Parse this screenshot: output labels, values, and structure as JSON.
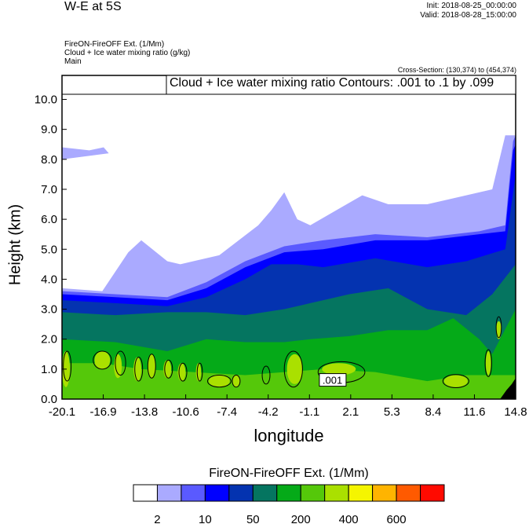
{
  "header": {
    "title": "W-E at 5S",
    "init": "Init: 2018-08-25_00:00:00",
    "valid": "Valid: 2018-08-28_15:00:00",
    "field1": "FireON-FireOFF Ext.   (1/Mm)",
    "field2": "Cloud + Ice water mixing ratio   (g/kg)",
    "field3": "Main",
    "cross_section": "Cross-Section: (130,374) to (454,374)"
  },
  "chart_data": {
    "type": "contour",
    "contour_label": "Cloud + Ice water mixing ratio Contours: .001 to .1 by .099",
    "xlabel": "longitude",
    "ylabel": "Height (km)",
    "xlim": [
      -20.1,
      14.8
    ],
    "ylim": [
      0,
      10.8
    ],
    "xticks": [
      "-20.1",
      "-16.9",
      "-13.8",
      "-10.6",
      "-7.4",
      "-4.2",
      "-1.1",
      "2.1",
      "5.3",
      "8.4",
      "11.6",
      "14.8"
    ],
    "yticks": [
      "0.0",
      "1.0",
      "2.0",
      "3.0",
      "4.0",
      "5.0",
      "6.0",
      "7.0",
      "8.0",
      "9.0",
      "10.0"
    ],
    "colorbar": {
      "title": "FireON-FireOFF Ext.  (1/Mm)",
      "labels": [
        "2",
        "10",
        "50",
        "200",
        "400",
        "600"
      ],
      "colors": [
        "#ffffff",
        "#aaaaff",
        "#5a5aff",
        "#0000ff",
        "#0433b0",
        "#057560",
        "#05aa18",
        "#55c80a",
        "#aae000",
        "#f5f500",
        "#ffb400",
        "#ff5a00",
        "#ff0a00"
      ]
    },
    "bands": [
      {
        "color": "#aaaaff",
        "top": [
          [
            -20.1,
            3.7
          ],
          [
            -17,
            3.6
          ],
          [
            -15,
            4.9
          ],
          [
            -14,
            5.3
          ],
          [
            -12,
            4.6
          ],
          [
            -11,
            4.5
          ],
          [
            -8,
            4.8
          ],
          [
            -5,
            5.8
          ],
          [
            -4,
            6.3
          ],
          [
            -3,
            6.9
          ],
          [
            -2,
            6.0
          ],
          [
            -1,
            5.8
          ],
          [
            1,
            6.3
          ],
          [
            3,
            6.8
          ],
          [
            5,
            6.5
          ],
          [
            8,
            6.5
          ],
          [
            11,
            6.8
          ],
          [
            13,
            7.0
          ],
          [
            14,
            8.8
          ],
          [
            14.8,
            8.8
          ]
        ]
      },
      {
        "color": "#aaaaff",
        "top": [
          [
            -20.1,
            8.4
          ],
          [
            -18,
            8.3
          ],
          [
            -16.9,
            8.4
          ],
          [
            -16.5,
            8.2
          ],
          [
            -20.1,
            8.0
          ]
        ]
      },
      {
        "color": "#5a5aff",
        "top": [
          [
            -20.1,
            3.6
          ],
          [
            -16,
            3.5
          ],
          [
            -12,
            3.4
          ],
          [
            -9,
            3.9
          ],
          [
            -6,
            4.6
          ],
          [
            -3,
            5.1
          ],
          [
            0,
            5.3
          ],
          [
            4,
            5.5
          ],
          [
            8,
            5.4
          ],
          [
            12,
            5.6
          ],
          [
            14,
            5.8
          ],
          [
            14.6,
            8.6
          ],
          [
            14.8,
            8.8
          ]
        ]
      },
      {
        "color": "#0000ff",
        "top": [
          [
            -20.1,
            3.5
          ],
          [
            -16,
            3.4
          ],
          [
            -12,
            3.3
          ],
          [
            -9,
            3.7
          ],
          [
            -6,
            4.4
          ],
          [
            -3,
            4.9
          ],
          [
            0,
            5.0
          ],
          [
            4,
            5.3
          ],
          [
            8,
            5.3
          ],
          [
            12,
            5.5
          ],
          [
            14,
            5.6
          ],
          [
            14.6,
            8.3
          ],
          [
            14.8,
            8.5
          ]
        ]
      },
      {
        "color": "#0433b0",
        "top": [
          [
            -20.1,
            3.3
          ],
          [
            -16,
            3.2
          ],
          [
            -12,
            3.1
          ],
          [
            -9,
            3.4
          ],
          [
            -6,
            4.0
          ],
          [
            -4,
            4.5
          ],
          [
            -2,
            4.5
          ],
          [
            0,
            4.4
          ],
          [
            4,
            4.7
          ],
          [
            8,
            4.4
          ],
          [
            11,
            4.6
          ],
          [
            14,
            5.0
          ],
          [
            14.8,
            7.5
          ]
        ]
      },
      {
        "color": "#057560",
        "top": [
          [
            -20.1,
            2.9
          ],
          [
            -16,
            2.8
          ],
          [
            -12,
            2.9
          ],
          [
            -9,
            2.9
          ],
          [
            -6,
            2.8
          ],
          [
            -3,
            3.0
          ],
          [
            -1,
            3.2
          ],
          [
            2,
            3.5
          ],
          [
            5,
            3.7
          ],
          [
            8,
            3.0
          ],
          [
            11,
            2.8
          ],
          [
            13,
            3.5
          ],
          [
            14.8,
            4.5
          ]
        ]
      },
      {
        "color": "#05aa18",
        "top": [
          [
            -20.1,
            2.0
          ],
          [
            -16,
            1.9
          ],
          [
            -12,
            1.6
          ],
          [
            -9,
            2.0
          ],
          [
            -6,
            1.9
          ],
          [
            -3,
            1.9
          ],
          [
            -1,
            2.0
          ],
          [
            2,
            2.1
          ],
          [
            5,
            2.3
          ],
          [
            8,
            2.3
          ],
          [
            10,
            2.7
          ],
          [
            12,
            2.0
          ],
          [
            13,
            1.5
          ],
          [
            14.8,
            3.0
          ]
        ]
      },
      {
        "color": "#55c80a",
        "top": [
          [
            -20.1,
            1.2
          ],
          [
            -17,
            1.2
          ],
          [
            -14,
            1.0
          ],
          [
            -10,
            0.9
          ],
          [
            -6,
            0.8
          ],
          [
            -3,
            0.9
          ],
          [
            0,
            1.0
          ],
          [
            4,
            0.9
          ],
          [
            8,
            0.6
          ],
          [
            11,
            0.8
          ],
          [
            14.8,
            0.8
          ]
        ]
      }
    ],
    "patches": [
      [
        -19.8,
        1.0,
        0.3,
        0.6
      ],
      [
        -17,
        1.3,
        0.6,
        0.3
      ],
      [
        -15.8,
        1.1,
        0.3,
        0.4
      ],
      [
        -14.3,
        1.0,
        0.3,
        0.4
      ],
      [
        -13.2,
        1.1,
        0.3,
        0.4
      ],
      [
        -12,
        1.0,
        0.3,
        0.3
      ],
      [
        -10.9,
        0.9,
        0.3,
        0.3
      ],
      [
        -9.6,
        0.9,
        0.2,
        0.3
      ],
      [
        -8,
        0.6,
        0.8,
        0.2
      ],
      [
        -6.7,
        0.6,
        0.3,
        0.2
      ],
      [
        -2.2,
        1.0,
        0.6,
        0.5
      ],
      [
        1.2,
        1.0,
        1.3,
        0.2
      ],
      [
        10.2,
        0.6,
        0.9,
        0.2
      ],
      [
        12.7,
        1.2,
        0.2,
        0.4
      ],
      [
        13.5,
        2.3,
        0.2,
        0.3
      ]
    ],
    "contours": [
      [
        -19.7,
        1.1,
        0.3,
        0.5
      ],
      [
        -17,
        1.3,
        0.7,
        0.3
      ],
      [
        -15.6,
        1.2,
        0.4,
        0.4
      ],
      [
        -14.2,
        1.0,
        0.3,
        0.4
      ],
      [
        -13.2,
        1.1,
        0.3,
        0.4
      ],
      [
        -11.9,
        1.0,
        0.3,
        0.3
      ],
      [
        -10.8,
        0.9,
        0.3,
        0.3
      ],
      [
        -9.5,
        0.9,
        0.2,
        0.3
      ],
      [
        -8,
        0.6,
        0.9,
        0.2
      ],
      [
        -6.7,
        0.6,
        0.3,
        0.2
      ],
      [
        -4.4,
        0.8,
        0.3,
        0.3
      ],
      [
        -2.3,
        1.0,
        0.7,
        0.6
      ],
      [
        1.4,
        0.9,
        1.8,
        0.35
      ],
      [
        10.2,
        0.6,
        1.0,
        0.22
      ],
      [
        12.7,
        1.2,
        0.25,
        0.45
      ],
      [
        13.5,
        2.4,
        0.2,
        0.35
      ]
    ],
    "contour_value_label": ".001",
    "terrain": [
      [
        13.6,
        0
      ],
      [
        14.1,
        0.3
      ],
      [
        14.5,
        0.5
      ],
      [
        14.8,
        0.7
      ],
      [
        14.8,
        0
      ]
    ]
  }
}
